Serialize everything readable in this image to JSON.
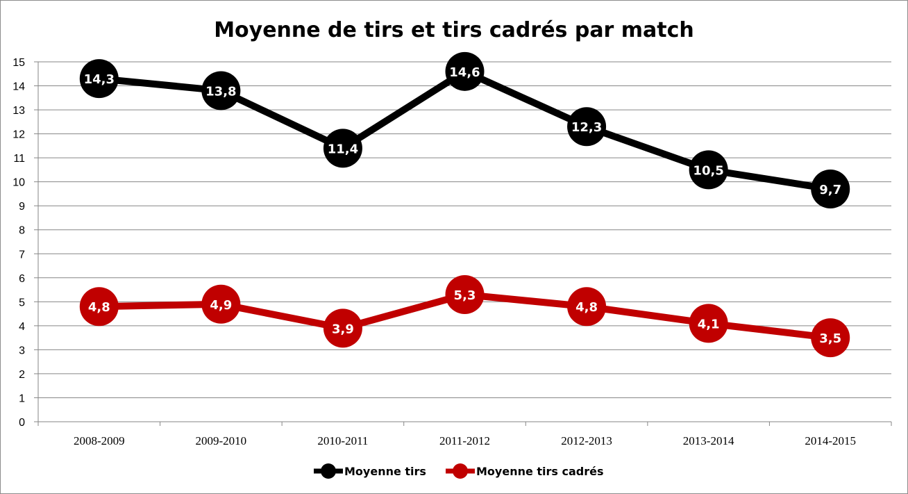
{
  "chart_data": {
    "type": "line",
    "title": "Moyenne de tirs et tirs cadrés par match",
    "categories": [
      "2008-2009",
      "2009-2010",
      "2010-2011",
      "2011-2012",
      "2012-2013",
      "2013-2014",
      "2014-2015"
    ],
    "series": [
      {
        "name": "Moyenne tirs",
        "color": "#000000",
        "values": [
          14.3,
          13.8,
          11.4,
          14.6,
          12.3,
          10.5,
          9.7
        ],
        "labels": [
          "14,3",
          "13,8",
          "11,4",
          "14,6",
          "12,3",
          "10,5",
          "9,7"
        ]
      },
      {
        "name": "Moyenne tirs cadrés",
        "color": "#c00000",
        "values": [
          4.8,
          4.9,
          3.9,
          5.3,
          4.8,
          4.1,
          3.5
        ],
        "labels": [
          "4,8",
          "4,9",
          "3,9",
          "5,3",
          "4,8",
          "4,1",
          "3,5"
        ]
      }
    ],
    "ylim": [
      0,
      15
    ],
    "yticks": [
      "0",
      "1",
      "2",
      "3",
      "4",
      "5",
      "6",
      "7",
      "8",
      "9",
      "10",
      "11",
      "12",
      "13",
      "14",
      "15"
    ],
    "xlabel": "",
    "ylabel": "",
    "grid": true,
    "legend": "bottom"
  }
}
